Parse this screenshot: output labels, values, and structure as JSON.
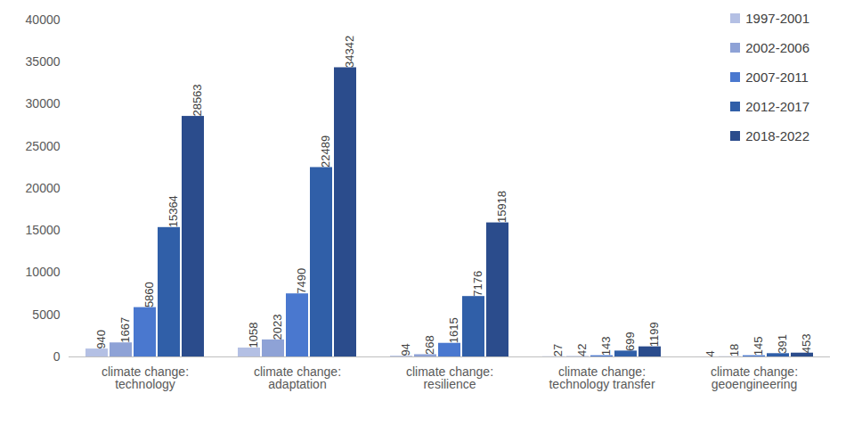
{
  "chart_data": {
    "type": "bar",
    "categories": [
      "climate change: technology",
      "climate change: adaptation",
      "climate change: resilience",
      "climate change: technology transfer",
      "climate change: geoengineering"
    ],
    "series": [
      {
        "name": "1997-2001",
        "color": "#b4c0e4",
        "values": [
          940,
          1058,
          94,
          27,
          4
        ]
      },
      {
        "name": "2002-2006",
        "color": "#8ea2d6",
        "values": [
          1667,
          2023,
          268,
          42,
          18
        ]
      },
      {
        "name": "2007-2011",
        "color": "#4a78cf",
        "values": [
          5860,
          7490,
          1615,
          143,
          145
        ]
      },
      {
        "name": "2012-2017",
        "color": "#305fa8",
        "values": [
          15364,
          22489,
          7176,
          699,
          391
        ]
      },
      {
        "name": "2018-2022",
        "color": "#2b4c8c",
        "values": [
          28563,
          34342,
          15918,
          1199,
          453
        ]
      }
    ],
    "ylim": [
      0,
      40000
    ],
    "yticks": [
      0,
      5000,
      10000,
      15000,
      20000,
      25000,
      30000,
      35000,
      40000
    ],
    "grid": false,
    "legend": "top-right",
    "data_labels": true
  }
}
